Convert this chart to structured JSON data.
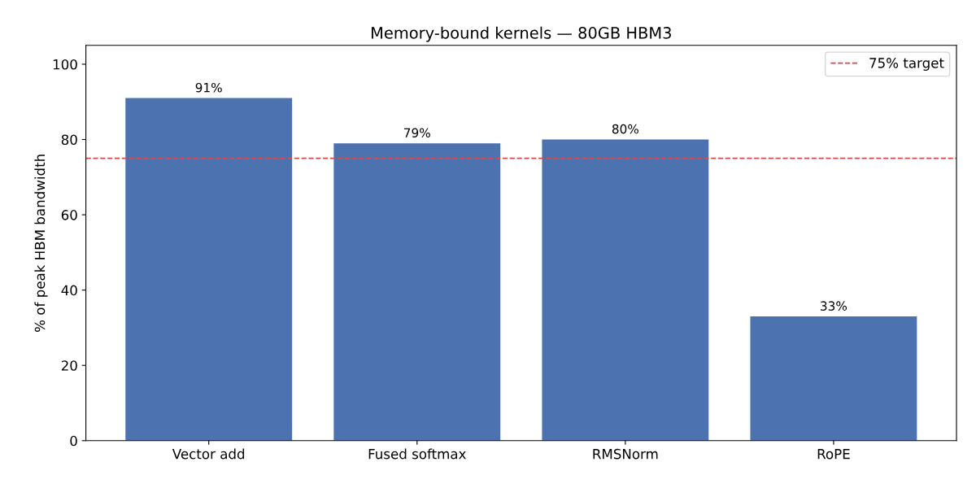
{
  "chart_data": {
    "type": "bar",
    "title": "Memory-bound kernels — 80GB HBM3",
    "ylabel": "% of peak HBM bandwidth",
    "categories": [
      "Vector add",
      "Fused softmax",
      "RMSNorm",
      "RoPE"
    ],
    "values": [
      91,
      79,
      80,
      33
    ],
    "value_labels": [
      "91%",
      "79%",
      "80%",
      "33%"
    ],
    "color": "#4c72b0",
    "ylim": [
      0,
      105
    ],
    "yticks": [
      0,
      20,
      40,
      60,
      80,
      100
    ],
    "ref_lines": [
      {
        "axis": "y",
        "value": 75,
        "label": "75% target",
        "color": "#d9484a",
        "line_style": "dashed"
      }
    ],
    "legend": "top right",
    "grid": false
  }
}
